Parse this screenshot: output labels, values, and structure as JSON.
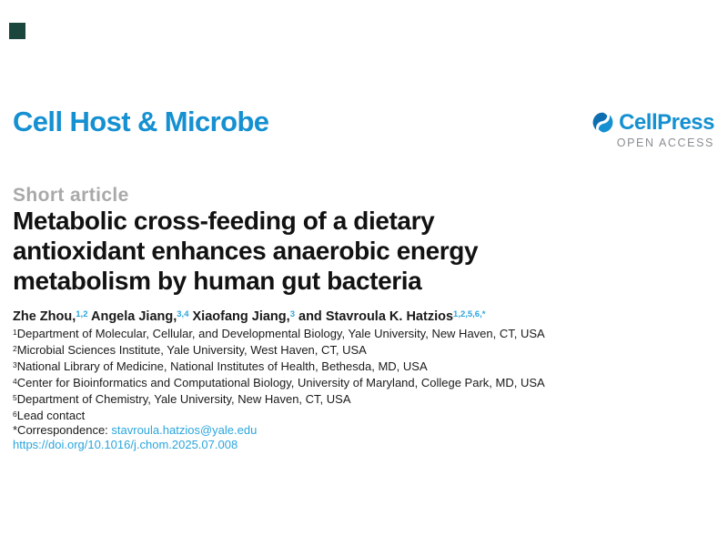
{
  "header": {
    "journal_title": "Cell Host & Microbe",
    "publisher_name": "CellPress",
    "open_access": "OPEN ACCESS"
  },
  "icons": {
    "publisher_mark": "cellpress-swirl-icon"
  },
  "article": {
    "kicker": "Short article",
    "title": "Metabolic cross-feeding of a dietary antioxidant enhances anaerobic energy metabolism by human gut bacteria",
    "title_lines": [
      "Metabolic cross-feeding of a dietary",
      "antioxidant enhances anaerobic energy",
      "metabolism by human gut bacteria"
    ],
    "authors": [
      {
        "text": "Zhe Zhou,",
        "sup": "1,2"
      },
      {
        "text": "Angela Jiang,",
        "sup": "3,4"
      },
      {
        "text": "Xiaofang Jiang,",
        "sup": "3"
      },
      {
        "text": "and Stavroula K. Hatzios",
        "sup": "1,2,5,6,*"
      }
    ],
    "affiliations": [
      {
        "sup": "1",
        "text": "Department of Molecular, Cellular, and Developmental Biology, Yale University, New Haven, CT, USA"
      },
      {
        "sup": "2",
        "text": "Microbial Sciences Institute, Yale University, West Haven, CT, USA"
      },
      {
        "sup": "3",
        "text": "National Library of Medicine, National Institutes of Health, Bethesda, MD, USA"
      },
      {
        "sup": "4",
        "text": "Center for Bioinformatics and Computational Biology, University of Maryland, College Park, MD, USA"
      },
      {
        "sup": "5",
        "text": "Department of Chemistry, Yale University, New Haven, CT, USA"
      },
      {
        "sup": "6",
        "text": "Lead contact"
      }
    ],
    "correspondence_label": "*Correspondence: ",
    "correspondence_email": "stavroula.hatzios@yale.edu",
    "doi": "https://doi.org/10.1016/j.chom.2025.07.008"
  },
  "colors": {
    "brand_blue": "#1590d1",
    "link_blue": "#2ba6dd",
    "kicker_gray": "#a9a9a9",
    "open_access_gray": "#8b8e91",
    "corner_square": "#1a463e",
    "icon_dark_blue": "#0d6fb2",
    "icon_light_blue": "#1591d3"
  }
}
